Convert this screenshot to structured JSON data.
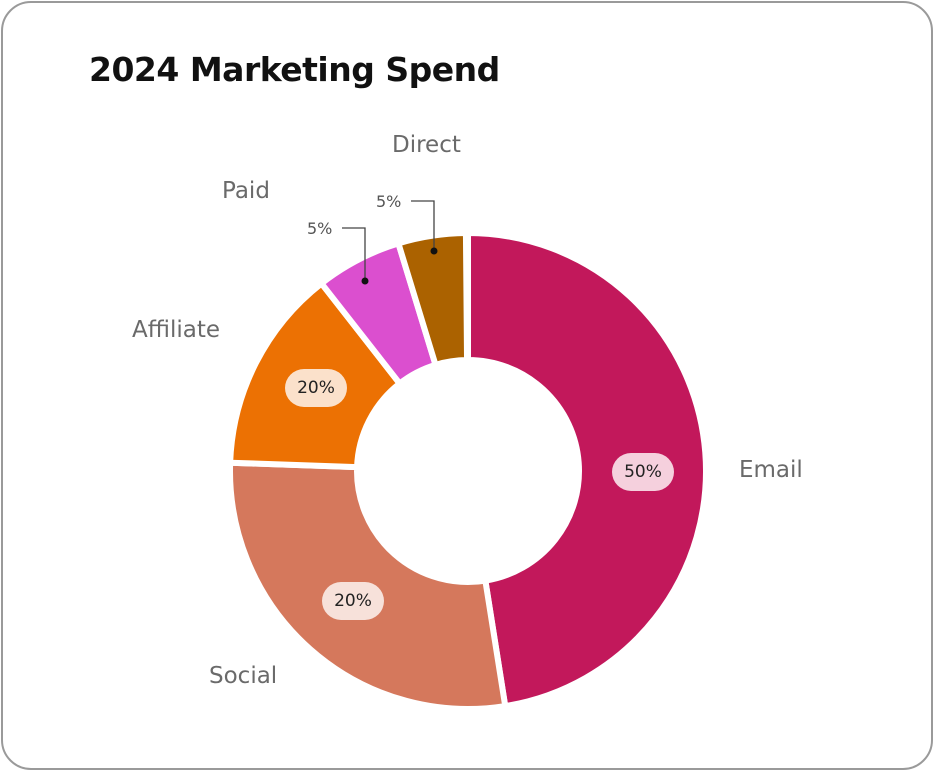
{
  "title": "2024 Marketing Spend",
  "chart_data": {
    "type": "pie",
    "variant": "donut",
    "title": "2024 Marketing Spend",
    "categories": [
      "Email",
      "Social",
      "Affiliate",
      "Paid",
      "Direct"
    ],
    "values": [
      50,
      20,
      20,
      5,
      5
    ],
    "unit": "%",
    "data_labels": [
      "50%",
      "20%",
      "20%",
      "5%",
      "5%"
    ],
    "colors": [
      "#c2185b",
      "#d5785c",
      "#ec7103",
      "#db4fcf",
      "#ab6200"
    ],
    "legend": "inline labels outside slices"
  },
  "labels": {
    "email": "Email",
    "social": "Social",
    "affiliate": "Affiliate",
    "paid": "Paid",
    "direct": "Direct"
  },
  "values": {
    "email": "50%",
    "social": "20%",
    "affiliate": "20%",
    "paid": "5%",
    "direct": "5%"
  }
}
